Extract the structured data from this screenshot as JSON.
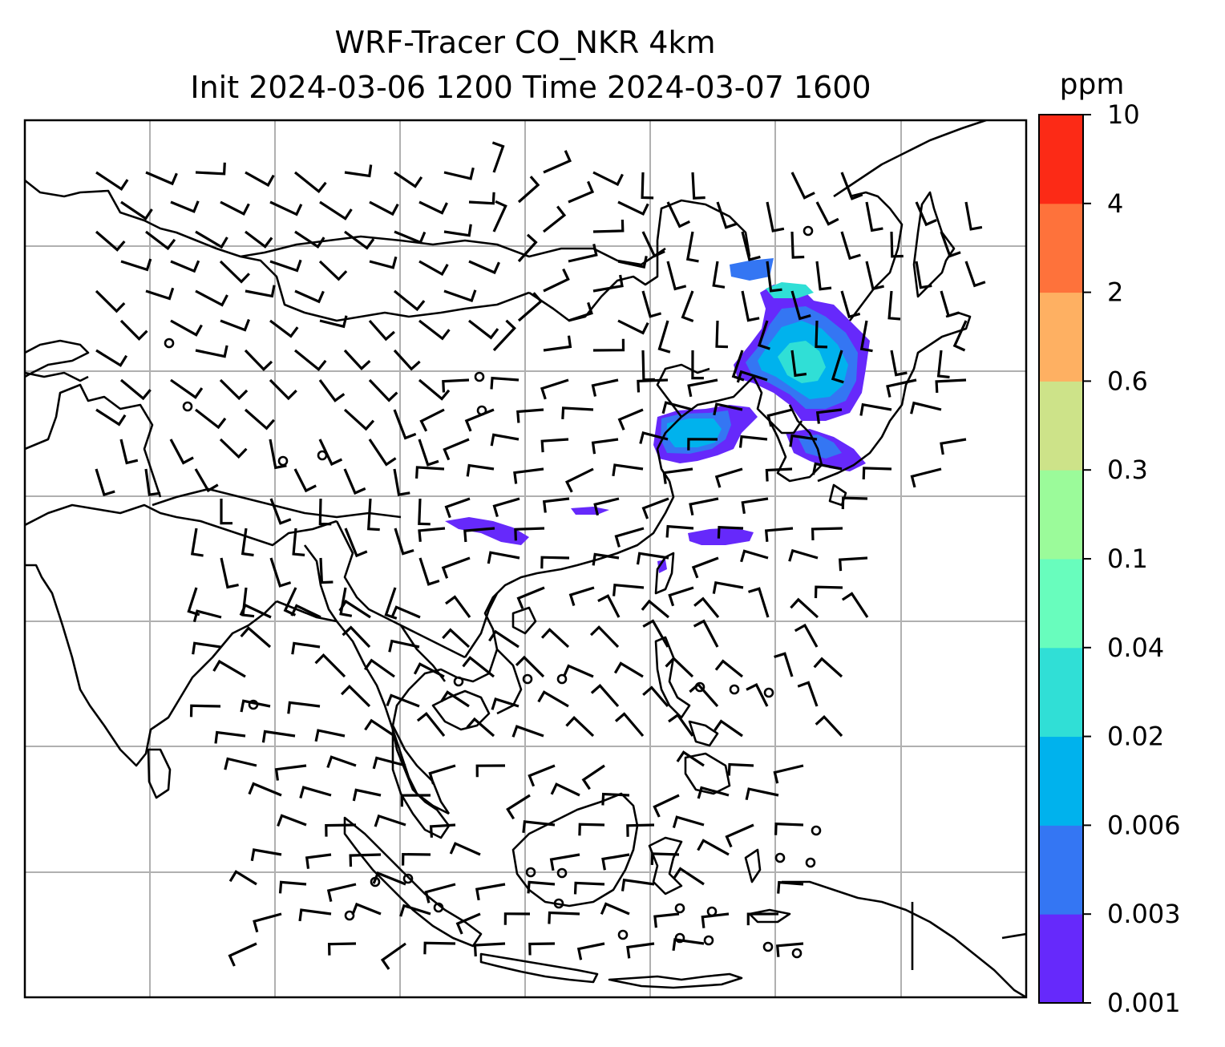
{
  "figure": {
    "title_line1": "WRF-Tracer CO_NKR 4km",
    "title_line2": "Init 2024-03-06 1200 Time 2024-03-07 1600"
  },
  "colorbar": {
    "unit": "ppm",
    "levels": [
      "0.001",
      "0.003",
      "0.006",
      "0.02",
      "0.04",
      "0.1",
      "0.3",
      "0.6",
      "2",
      "4",
      "10"
    ],
    "colors": [
      "#6629fb",
      "#3476f3",
      "#00b2ed",
      "#30dfd6",
      "#68fdbd",
      "#9bfb9a",
      "#cde389",
      "#feb062",
      "#fe723b",
      "#fc2a16"
    ]
  },
  "map": {
    "grid_lines": true,
    "coastline_color": "#000000",
    "grid_color": "#b0b0b0",
    "wind_barb_color": "#000000",
    "tracer_color": "#6629fb"
  },
  "chart_data": {
    "type": "heatmap",
    "variable": "CO_NKR",
    "unit": "ppm",
    "color_levels": [
      0.001,
      0.003,
      0.006,
      0.02,
      0.04,
      0.1,
      0.3,
      0.6,
      2,
      4,
      10
    ],
    "plume_regions": [
      {
        "center": [
          0.715,
          0.33
        ],
        "max_level": 0.04
      },
      {
        "center": [
          0.76,
          0.27
        ],
        "max_level": 0.04
      },
      {
        "center": [
          0.69,
          0.36
        ],
        "max_level": 0.02
      },
      {
        "center": [
          0.81,
          0.4
        ],
        "max_level": 0.003
      },
      {
        "center": [
          0.48,
          0.46
        ],
        "max_level": 0.003
      },
      {
        "center": [
          0.7,
          0.47
        ],
        "max_level": 0.003
      }
    ]
  }
}
